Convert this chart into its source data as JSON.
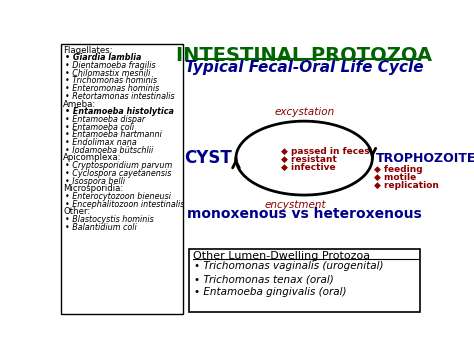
{
  "title": "INTESTINAL PROTOZOA",
  "subtitle": "Typical Fecal-Oral Life Cycle",
  "bg_color": "#ffffff",
  "title_color": "#006400",
  "subtitle_color": "#00008B",
  "left_box": {
    "sections": [
      {
        "header": "Flagellates:",
        "items": [
          {
            "text": "Giardia lamblia",
            "bold": true
          },
          {
            "text": "Dientamoeba fragilis",
            "bold": false
          },
          {
            "text": "Chilomastix mesnili",
            "bold": false
          },
          {
            "text": "Trichomonas hominis",
            "bold": false
          },
          {
            "text": "Enteromonas hominis",
            "bold": false
          },
          {
            "text": "Retortamonas intestinalis",
            "bold": false
          }
        ]
      },
      {
        "header": "Ameba:",
        "items": [
          {
            "text": "Entamoeba histolytica",
            "bold": true
          },
          {
            "text": "Entamoeba dispar",
            "bold": false
          },
          {
            "text": "Entamoeba coli",
            "bold": false
          },
          {
            "text": "Entamoeba hartmanni",
            "bold": false
          },
          {
            "text": "Endolimax nana",
            "bold": false
          },
          {
            "text": "Iodamoeba bütschlii",
            "bold": false
          }
        ]
      },
      {
        "header": "Apicomplexa:",
        "items": [
          {
            "text": "Cryptosporidium parvum",
            "bold": false
          },
          {
            "text": "Cyclospora cayetanensis",
            "bold": false
          },
          {
            "text": "Isospora belli",
            "bold": false
          }
        ]
      },
      {
        "header": "Microsporidia:",
        "items": [
          {
            "text": "Enterocytozoon bieneusi",
            "bold": false
          },
          {
            "text": "Encephalitozoon intestinalis",
            "bold": false
          }
        ]
      },
      {
        "header": "Other:",
        "items": [
          {
            "text": "Blastocystis hominis",
            "bold": false
          },
          {
            "text": "Balantidium coli",
            "bold": false
          }
        ]
      }
    ]
  },
  "cyst_label": "CYST",
  "troph_label": "TROPHOZOITE",
  "cyst_color": "#00008B",
  "troph_color": "#00008B",
  "top_arrow_label": "excystation",
  "bottom_arrow_label": "encystment",
  "arrow_label_color": "#8B0000",
  "cyst_props": [
    "passed in feces",
    "resistant",
    "infective"
  ],
  "troph_props": [
    "feeding",
    "motile",
    "replication"
  ],
  "prop_color": "#8B0000",
  "mono_text": "monoxenous vs heteroxenous",
  "mono_color": "#00008B",
  "bottom_box_title": "Other Lumen-Dwelling Protozoa",
  "bottom_box_items": [
    "Trichomonas vaginalis (urogenital)",
    "Trichomonas tenax (oral)",
    "Entamoeba gingivalis (oral)"
  ]
}
